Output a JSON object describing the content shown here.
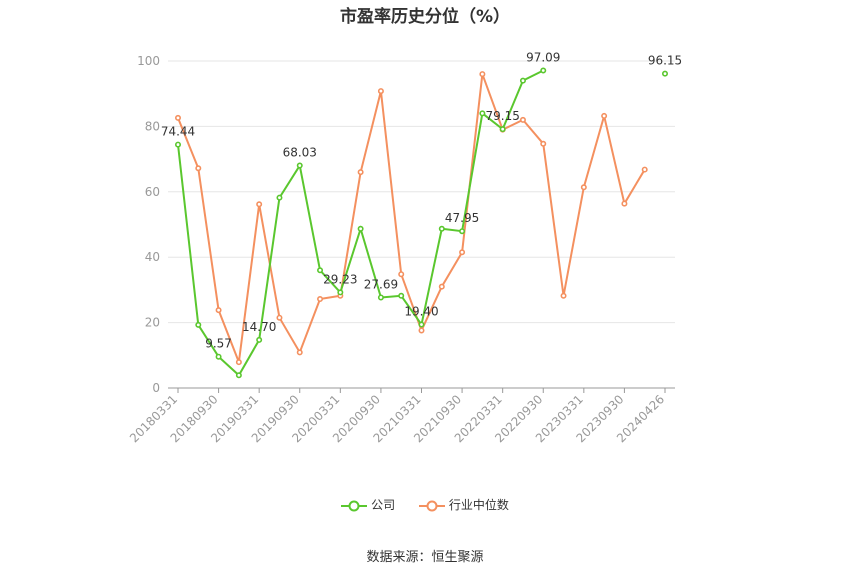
{
  "chart_data": {
    "type": "line",
    "title": "市盈率历史分位（%）",
    "source": "数据来源：恒生聚源",
    "ylim": [
      0,
      100
    ],
    "yticks": [
      0,
      20,
      40,
      60,
      80,
      100
    ],
    "xtick_labels": [
      "20180331",
      "20180930",
      "20190331",
      "20190930",
      "20200331",
      "20200930",
      "20210331",
      "20210930",
      "20220331",
      "20220930",
      "20230331",
      "20230930",
      "20240426"
    ],
    "x": [
      "20180331",
      "20180630",
      "20180930",
      "20181231",
      "20190331",
      "20190630",
      "20190930",
      "20191231",
      "20200331",
      "20200630",
      "20200930",
      "20201231",
      "20210331",
      "20210630",
      "20210930",
      "20211231",
      "20220331",
      "20220630",
      "20220930",
      "20221231",
      "20230331",
      "20230630",
      "20230930",
      "20231231",
      "20240426"
    ],
    "grid": true,
    "legend_position": "bottom",
    "series": [
      {
        "name": "公司",
        "color": "#5ac72e",
        "values": [
          74.44,
          19.3,
          9.57,
          3.9,
          14.7,
          58.2,
          68.03,
          36.0,
          29.23,
          48.7,
          27.69,
          28.2,
          19.4,
          48.7,
          47.95,
          84.0,
          79.15,
          94.0,
          97.09,
          null,
          null,
          null,
          null,
          null,
          96.15
        ]
      },
      {
        "name": "行业中位数",
        "color": "#f4905f",
        "values": [
          82.6,
          67.2,
          23.8,
          7.9,
          56.2,
          21.5,
          10.9,
          27.2,
          28.2,
          66.0,
          90.8,
          34.8,
          17.6,
          31.0,
          41.5,
          96.0,
          79.0,
          82.0,
          74.7,
          28.2,
          61.4,
          83.2,
          56.4,
          66.8,
          null
        ]
      }
    ],
    "data_labels": [
      {
        "series": 0,
        "index": 0,
        "text": "74.44"
      },
      {
        "series": 0,
        "index": 2,
        "text": "9.57"
      },
      {
        "series": 0,
        "index": 4,
        "text": "14.70"
      },
      {
        "series": 0,
        "index": 6,
        "text": "68.03"
      },
      {
        "series": 0,
        "index": 8,
        "text": "29.23"
      },
      {
        "series": 0,
        "index": 10,
        "text": "27.69"
      },
      {
        "series": 0,
        "index": 12,
        "text": "19.40"
      },
      {
        "series": 0,
        "index": 14,
        "text": "47.95"
      },
      {
        "series": 0,
        "index": 16,
        "text": "79.15"
      },
      {
        "series": 0,
        "index": 18,
        "text": "97.09"
      },
      {
        "series": 0,
        "index": 24,
        "text": "96.15"
      }
    ]
  }
}
